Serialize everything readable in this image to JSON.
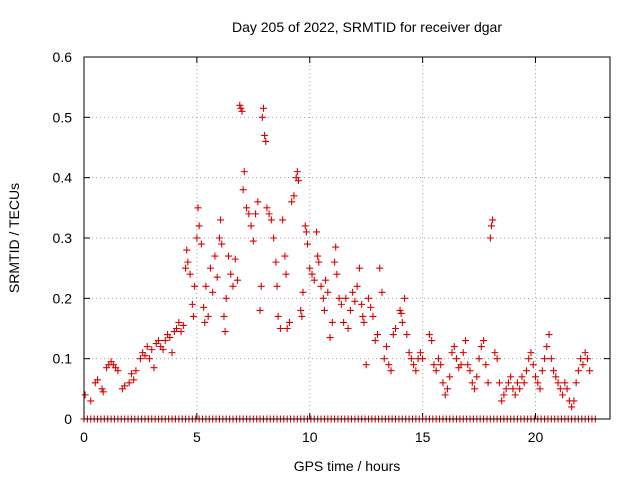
{
  "chart_data": {
    "type": "scatter",
    "title": "Day 205 of 2022, SRMTID for receiver dgar",
    "xlabel": "GPS time / hours",
    "ylabel": "SRMTID / TECUs",
    "xlim": [
      0,
      23.3
    ],
    "ylim": [
      0,
      0.6
    ],
    "xticks": [
      0,
      5,
      10,
      15,
      20
    ],
    "xtick_labels": [
      "0",
      "5",
      "10",
      "15",
      "20"
    ],
    "yticks": [
      0,
      0.1,
      0.2,
      0.3,
      0.4,
      0.5,
      0.6
    ],
    "ytick_labels": [
      "0",
      "0.1",
      "0.2",
      "0.3",
      "0.4",
      "0.5",
      "0.6"
    ],
    "grid": true,
    "marker": "plus",
    "color": "#dd0000",
    "baseline": {
      "y": 0,
      "x_start": 0,
      "x_end": 22.7,
      "x_step": 0.15
    },
    "series": [
      {
        "name": "SRMTID",
        "points": [
          [
            0.05,
            0.04
          ],
          [
            0.3,
            0.03
          ],
          [
            0.5,
            0.06
          ],
          [
            0.6,
            0.065
          ],
          [
            0.8,
            0.05
          ],
          [
            0.85,
            0.045
          ],
          [
            1.0,
            0.085
          ],
          [
            1.1,
            0.09
          ],
          [
            1.2,
            0.095
          ],
          [
            1.3,
            0.09
          ],
          [
            1.4,
            0.085
          ],
          [
            1.5,
            0.08
          ],
          [
            1.7,
            0.05
          ],
          [
            1.8,
            0.055
          ],
          [
            2.0,
            0.06
          ],
          [
            2.1,
            0.075
          ],
          [
            2.2,
            0.065
          ],
          [
            2.3,
            0.08
          ],
          [
            2.5,
            0.1
          ],
          [
            2.6,
            0.11
          ],
          [
            2.7,
            0.105
          ],
          [
            2.8,
            0.12
          ],
          [
            2.9,
            0.1
          ],
          [
            3.0,
            0.115
          ],
          [
            3.1,
            0.085
          ],
          [
            3.2,
            0.125
          ],
          [
            3.3,
            0.13
          ],
          [
            3.4,
            0.12
          ],
          [
            3.5,
            0.115
          ],
          [
            3.6,
            0.13
          ],
          [
            3.7,
            0.14
          ],
          [
            3.8,
            0.135
          ],
          [
            3.9,
            0.11
          ],
          [
            4.0,
            0.145
          ],
          [
            4.1,
            0.15
          ],
          [
            4.2,
            0.16
          ],
          [
            4.3,
            0.145
          ],
          [
            4.4,
            0.155
          ],
          [
            4.5,
            0.25
          ],
          [
            4.55,
            0.28
          ],
          [
            4.6,
            0.26
          ],
          [
            4.7,
            0.24
          ],
          [
            4.8,
            0.19
          ],
          [
            4.85,
            0.17
          ],
          [
            4.9,
            0.22
          ],
          [
            5.0,
            0.3
          ],
          [
            5.05,
            0.35
          ],
          [
            5.1,
            0.32
          ],
          [
            5.2,
            0.29
          ],
          [
            5.3,
            0.185
          ],
          [
            5.35,
            0.16
          ],
          [
            5.4,
            0.22
          ],
          [
            5.5,
            0.17
          ],
          [
            5.6,
            0.25
          ],
          [
            5.7,
            0.21
          ],
          [
            5.8,
            0.27
          ],
          [
            5.9,
            0.235
          ],
          [
            6.0,
            0.3
          ],
          [
            6.05,
            0.33
          ],
          [
            6.1,
            0.29
          ],
          [
            6.2,
            0.17
          ],
          [
            6.25,
            0.145
          ],
          [
            6.3,
            0.2
          ],
          [
            6.4,
            0.27
          ],
          [
            6.5,
            0.24
          ],
          [
            6.6,
            0.22
          ],
          [
            6.7,
            0.265
          ],
          [
            6.8,
            0.23
          ],
          [
            6.9,
            0.52
          ],
          [
            6.95,
            0.515
          ],
          [
            7.0,
            0.51
          ],
          [
            7.05,
            0.38
          ],
          [
            7.1,
            0.41
          ],
          [
            7.2,
            0.35
          ],
          [
            7.3,
            0.34
          ],
          [
            7.4,
            0.32
          ],
          [
            7.5,
            0.295
          ],
          [
            7.6,
            0.34
          ],
          [
            7.7,
            0.36
          ],
          [
            7.8,
            0.18
          ],
          [
            7.85,
            0.22
          ],
          [
            7.9,
            0.5
          ],
          [
            7.95,
            0.515
          ],
          [
            8.0,
            0.47
          ],
          [
            8.05,
            0.46
          ],
          [
            8.1,
            0.35
          ],
          [
            8.2,
            0.34
          ],
          [
            8.3,
            0.33
          ],
          [
            8.4,
            0.3
          ],
          [
            8.5,
            0.26
          ],
          [
            8.55,
            0.22
          ],
          [
            8.6,
            0.17
          ],
          [
            8.7,
            0.15
          ],
          [
            8.8,
            0.33
          ],
          [
            8.9,
            0.27
          ],
          [
            8.95,
            0.24
          ],
          [
            9.0,
            0.15
          ],
          [
            9.1,
            0.16
          ],
          [
            9.2,
            0.36
          ],
          [
            9.3,
            0.37
          ],
          [
            9.4,
            0.4
          ],
          [
            9.45,
            0.41
          ],
          [
            9.5,
            0.395
          ],
          [
            9.6,
            0.18
          ],
          [
            9.65,
            0.17
          ],
          [
            9.7,
            0.21
          ],
          [
            9.8,
            0.32
          ],
          [
            9.85,
            0.31
          ],
          [
            9.9,
            0.29
          ],
          [
            10.0,
            0.25
          ],
          [
            10.1,
            0.24
          ],
          [
            10.2,
            0.23
          ],
          [
            10.3,
            0.31
          ],
          [
            10.35,
            0.27
          ],
          [
            10.4,
            0.26
          ],
          [
            10.5,
            0.22
          ],
          [
            10.6,
            0.2
          ],
          [
            10.65,
            0.18
          ],
          [
            10.7,
            0.23
          ],
          [
            10.8,
            0.21
          ],
          [
            10.9,
            0.135
          ],
          [
            11.0,
            0.16
          ],
          [
            11.1,
            0.26
          ],
          [
            11.15,
            0.285
          ],
          [
            11.2,
            0.24
          ],
          [
            11.3,
            0.2
          ],
          [
            11.4,
            0.19
          ],
          [
            11.5,
            0.16
          ],
          [
            11.6,
            0.2
          ],
          [
            11.7,
            0.15
          ],
          [
            11.8,
            0.18
          ],
          [
            11.9,
            0.21
          ],
          [
            12.0,
            0.195
          ],
          [
            12.1,
            0.22
          ],
          [
            12.2,
            0.25
          ],
          [
            12.3,
            0.19
          ],
          [
            12.35,
            0.17
          ],
          [
            12.4,
            0.16
          ],
          [
            12.5,
            0.09
          ],
          [
            12.6,
            0.2
          ],
          [
            12.7,
            0.185
          ],
          [
            12.8,
            0.17
          ],
          [
            12.9,
            0.13
          ],
          [
            13.0,
            0.14
          ],
          [
            13.1,
            0.25
          ],
          [
            13.2,
            0.21
          ],
          [
            13.3,
            0.1
          ],
          [
            13.4,
            0.12
          ],
          [
            13.5,
            0.09
          ],
          [
            13.6,
            0.08
          ],
          [
            13.7,
            0.14
          ],
          [
            13.8,
            0.15
          ],
          [
            14.0,
            0.18
          ],
          [
            14.05,
            0.175
          ],
          [
            14.1,
            0.16
          ],
          [
            14.2,
            0.2
          ],
          [
            14.3,
            0.14
          ],
          [
            14.4,
            0.11
          ],
          [
            14.5,
            0.1
          ],
          [
            14.6,
            0.09
          ],
          [
            14.7,
            0.08
          ],
          [
            14.8,
            0.1
          ],
          [
            14.9,
            0.11
          ],
          [
            15.0,
            0.1
          ],
          [
            15.3,
            0.14
          ],
          [
            15.4,
            0.13
          ],
          [
            15.5,
            0.09
          ],
          [
            15.6,
            0.08
          ],
          [
            15.7,
            0.1
          ],
          [
            15.8,
            0.09
          ],
          [
            15.9,
            0.06
          ],
          [
            16.0,
            0.04
          ],
          [
            16.1,
            0.05
          ],
          [
            16.2,
            0.07
          ],
          [
            16.3,
            0.11
          ],
          [
            16.4,
            0.12
          ],
          [
            16.5,
            0.1
          ],
          [
            16.6,
            0.085
          ],
          [
            16.7,
            0.09
          ],
          [
            16.8,
            0.11
          ],
          [
            16.9,
            0.13
          ],
          [
            17.0,
            0.09
          ],
          [
            17.1,
            0.08
          ],
          [
            17.2,
            0.06
          ],
          [
            17.3,
            0.05
          ],
          [
            17.4,
            0.07
          ],
          [
            17.5,
            0.1
          ],
          [
            17.6,
            0.12
          ],
          [
            17.7,
            0.13
          ],
          [
            17.8,
            0.09
          ],
          [
            17.9,
            0.06
          ],
          [
            18.0,
            0.3
          ],
          [
            18.05,
            0.32
          ],
          [
            18.1,
            0.33
          ],
          [
            18.2,
            0.11
          ],
          [
            18.3,
            0.1
          ],
          [
            18.4,
            0.06
          ],
          [
            18.5,
            0.03
          ],
          [
            18.6,
            0.04
          ],
          [
            18.7,
            0.05
          ],
          [
            18.8,
            0.06
          ],
          [
            18.9,
            0.07
          ],
          [
            19.0,
            0.05
          ],
          [
            19.1,
            0.04
          ],
          [
            19.2,
            0.06
          ],
          [
            19.3,
            0.05
          ],
          [
            19.4,
            0.07
          ],
          [
            19.5,
            0.06
          ],
          [
            19.6,
            0.08
          ],
          [
            19.7,
            0.1
          ],
          [
            19.8,
            0.11
          ],
          [
            19.9,
            0.09
          ],
          [
            20.0,
            0.07
          ],
          [
            20.1,
            0.06
          ],
          [
            20.2,
            0.05
          ],
          [
            20.3,
            0.08
          ],
          [
            20.4,
            0.1
          ],
          [
            20.5,
            0.12
          ],
          [
            20.6,
            0.14
          ],
          [
            20.7,
            0.1
          ],
          [
            20.8,
            0.08
          ],
          [
            20.9,
            0.07
          ],
          [
            21.0,
            0.06
          ],
          [
            21.1,
            0.05
          ],
          [
            21.2,
            0.04
          ],
          [
            21.3,
            0.06
          ],
          [
            21.4,
            0.05
          ],
          [
            21.5,
            0.03
          ],
          [
            21.6,
            0.02
          ],
          [
            21.7,
            0.03
          ],
          [
            21.8,
            0.06
          ],
          [
            21.9,
            0.08
          ],
          [
            22.0,
            0.1
          ],
          [
            22.1,
            0.09
          ],
          [
            22.2,
            0.11
          ],
          [
            22.3,
            0.1
          ],
          [
            22.4,
            0.08
          ]
        ]
      }
    ]
  }
}
